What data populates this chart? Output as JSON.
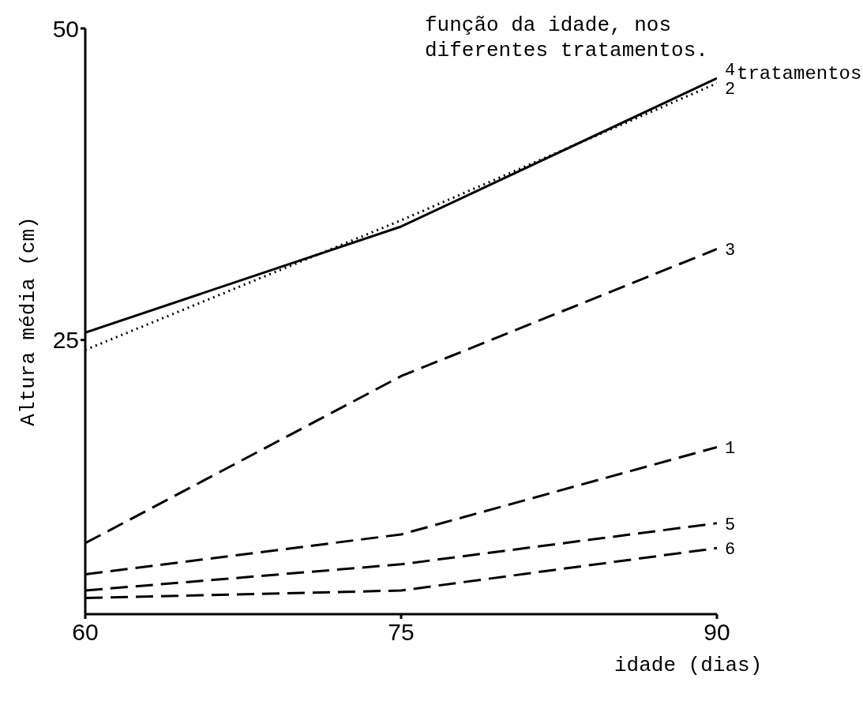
{
  "chart_data": {
    "type": "line",
    "title": "função da idade, nos diferentes tratamentos.",
    "xlabel": "idade (dias)",
    "ylabel": "Altura média (cm)",
    "annotations": [
      "tratamentos"
    ],
    "x": [
      60,
      75,
      90
    ],
    "xlim": [
      60,
      90
    ],
    "xticks": [
      60,
      75,
      90
    ],
    "ylim": [
      3,
      50
    ],
    "yticks": [
      25,
      50
    ],
    "grid": false,
    "legend": false,
    "marker": "none",
    "series": [
      {
        "name": "4",
        "color": "#000000",
        "line_style": "solid",
        "values": [
          25.6,
          34.1,
          46.0
        ]
      },
      {
        "name": "2",
        "color": "#000000",
        "line_style": "dotted",
        "values": [
          24.2,
          34.6,
          45.6
        ]
      },
      {
        "name": "3",
        "color": "#000000",
        "line_style": "dashed",
        "values": [
          8.7,
          22.1,
          32.3
        ]
      },
      {
        "name": "1",
        "color": "#000000",
        "line_style": "dashed",
        "values": [
          6.2,
          9.4,
          16.4
        ]
      },
      {
        "name": "5",
        "color": "#000000",
        "line_style": "dashed",
        "values": [
          4.9,
          7.0,
          10.3
        ]
      },
      {
        "name": "6",
        "color": "#000000",
        "line_style": "dashed",
        "values": [
          4.3,
          4.9,
          8.3
        ]
      }
    ]
  }
}
